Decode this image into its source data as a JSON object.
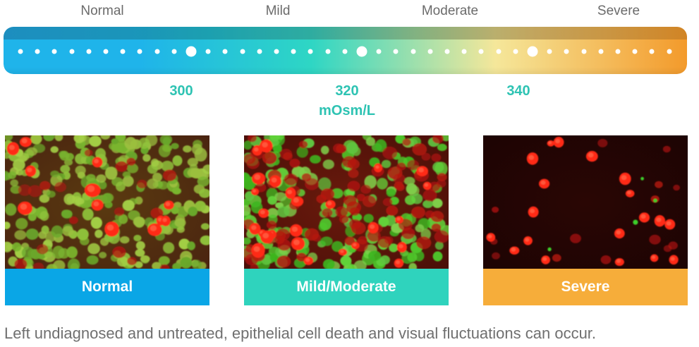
{
  "severity_labels": [
    "Normal",
    "Mild",
    "Moderate",
    "Severe"
  ],
  "scale": {
    "ticks": [
      "300",
      "320",
      "340"
    ],
    "unit": "mOsm/L",
    "gradient_colors": [
      "#1fb4ea",
      "#2ed6c4",
      "#f5e79a",
      "#f39a2b"
    ],
    "dot_color": "#ffffff"
  },
  "panels": [
    {
      "caption": "Normal",
      "caption_color": "#0aa6e6",
      "image": "fluorescence-micrograph-normal"
    },
    {
      "caption": "Mild/Moderate",
      "caption_color": "#2fd3bd",
      "image": "fluorescence-micrograph-mild-moderate"
    },
    {
      "caption": "Severe",
      "caption_color": "#f6ad3a",
      "image": "fluorescence-micrograph-severe"
    }
  ],
  "footnote": "Left undiagnosed and untreated, epithelial cell death and visual fluctuations can occur."
}
